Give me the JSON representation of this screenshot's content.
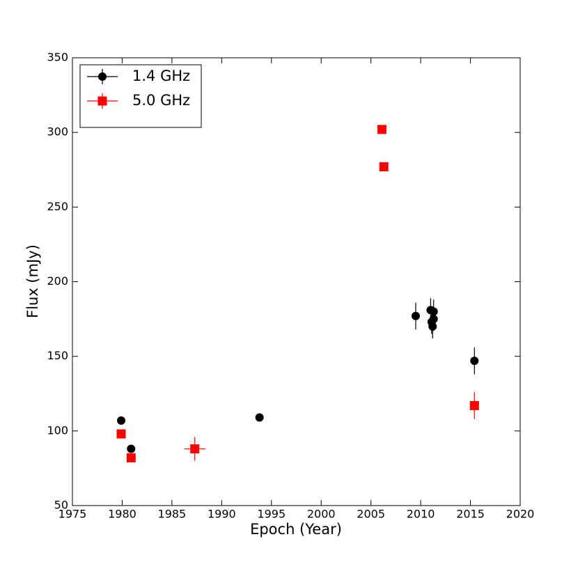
{
  "chart_data": {
    "type": "scatter",
    "xlabel": "Epoch (Year)",
    "ylabel": "Flux (mJy)",
    "xlim": [
      1975,
      2020
    ],
    "ylim": [
      50,
      350
    ],
    "xticks": [
      1975,
      1980,
      1985,
      1990,
      1995,
      2000,
      2005,
      2010,
      2015,
      2020
    ],
    "yticks": [
      50,
      100,
      150,
      200,
      250,
      300,
      350
    ],
    "legend": "upper left",
    "series": [
      {
        "name": "1.4 GHz",
        "color": "#000000",
        "marker": "circle",
        "x": [
          1979.9,
          1980.9,
          1993.8,
          2009.5,
          2011.0,
          2011.3,
          2011.1,
          2011.3,
          2011.2,
          2015.4
        ],
        "values": [
          107,
          88,
          109,
          177,
          181,
          180,
          173,
          175,
          170,
          147
        ],
        "yerr": [
          2,
          2,
          2,
          9,
          8,
          8,
          8,
          8,
          8,
          9
        ],
        "xerr": [
          0,
          0,
          0,
          0,
          0,
          0,
          0,
          0,
          0,
          0
        ]
      },
      {
        "name": "5.0 GHz",
        "color": "#ff0000",
        "marker": "square",
        "x": [
          1979.9,
          1980.9,
          1987.3,
          2006.1,
          2006.3,
          2015.4
        ],
        "values": [
          98,
          82,
          88,
          302,
          277,
          117
        ],
        "yerr": [
          2,
          2,
          8,
          2,
          2,
          9
        ],
        "xerr": [
          0,
          0,
          1.05,
          0,
          0,
          0
        ]
      }
    ]
  }
}
